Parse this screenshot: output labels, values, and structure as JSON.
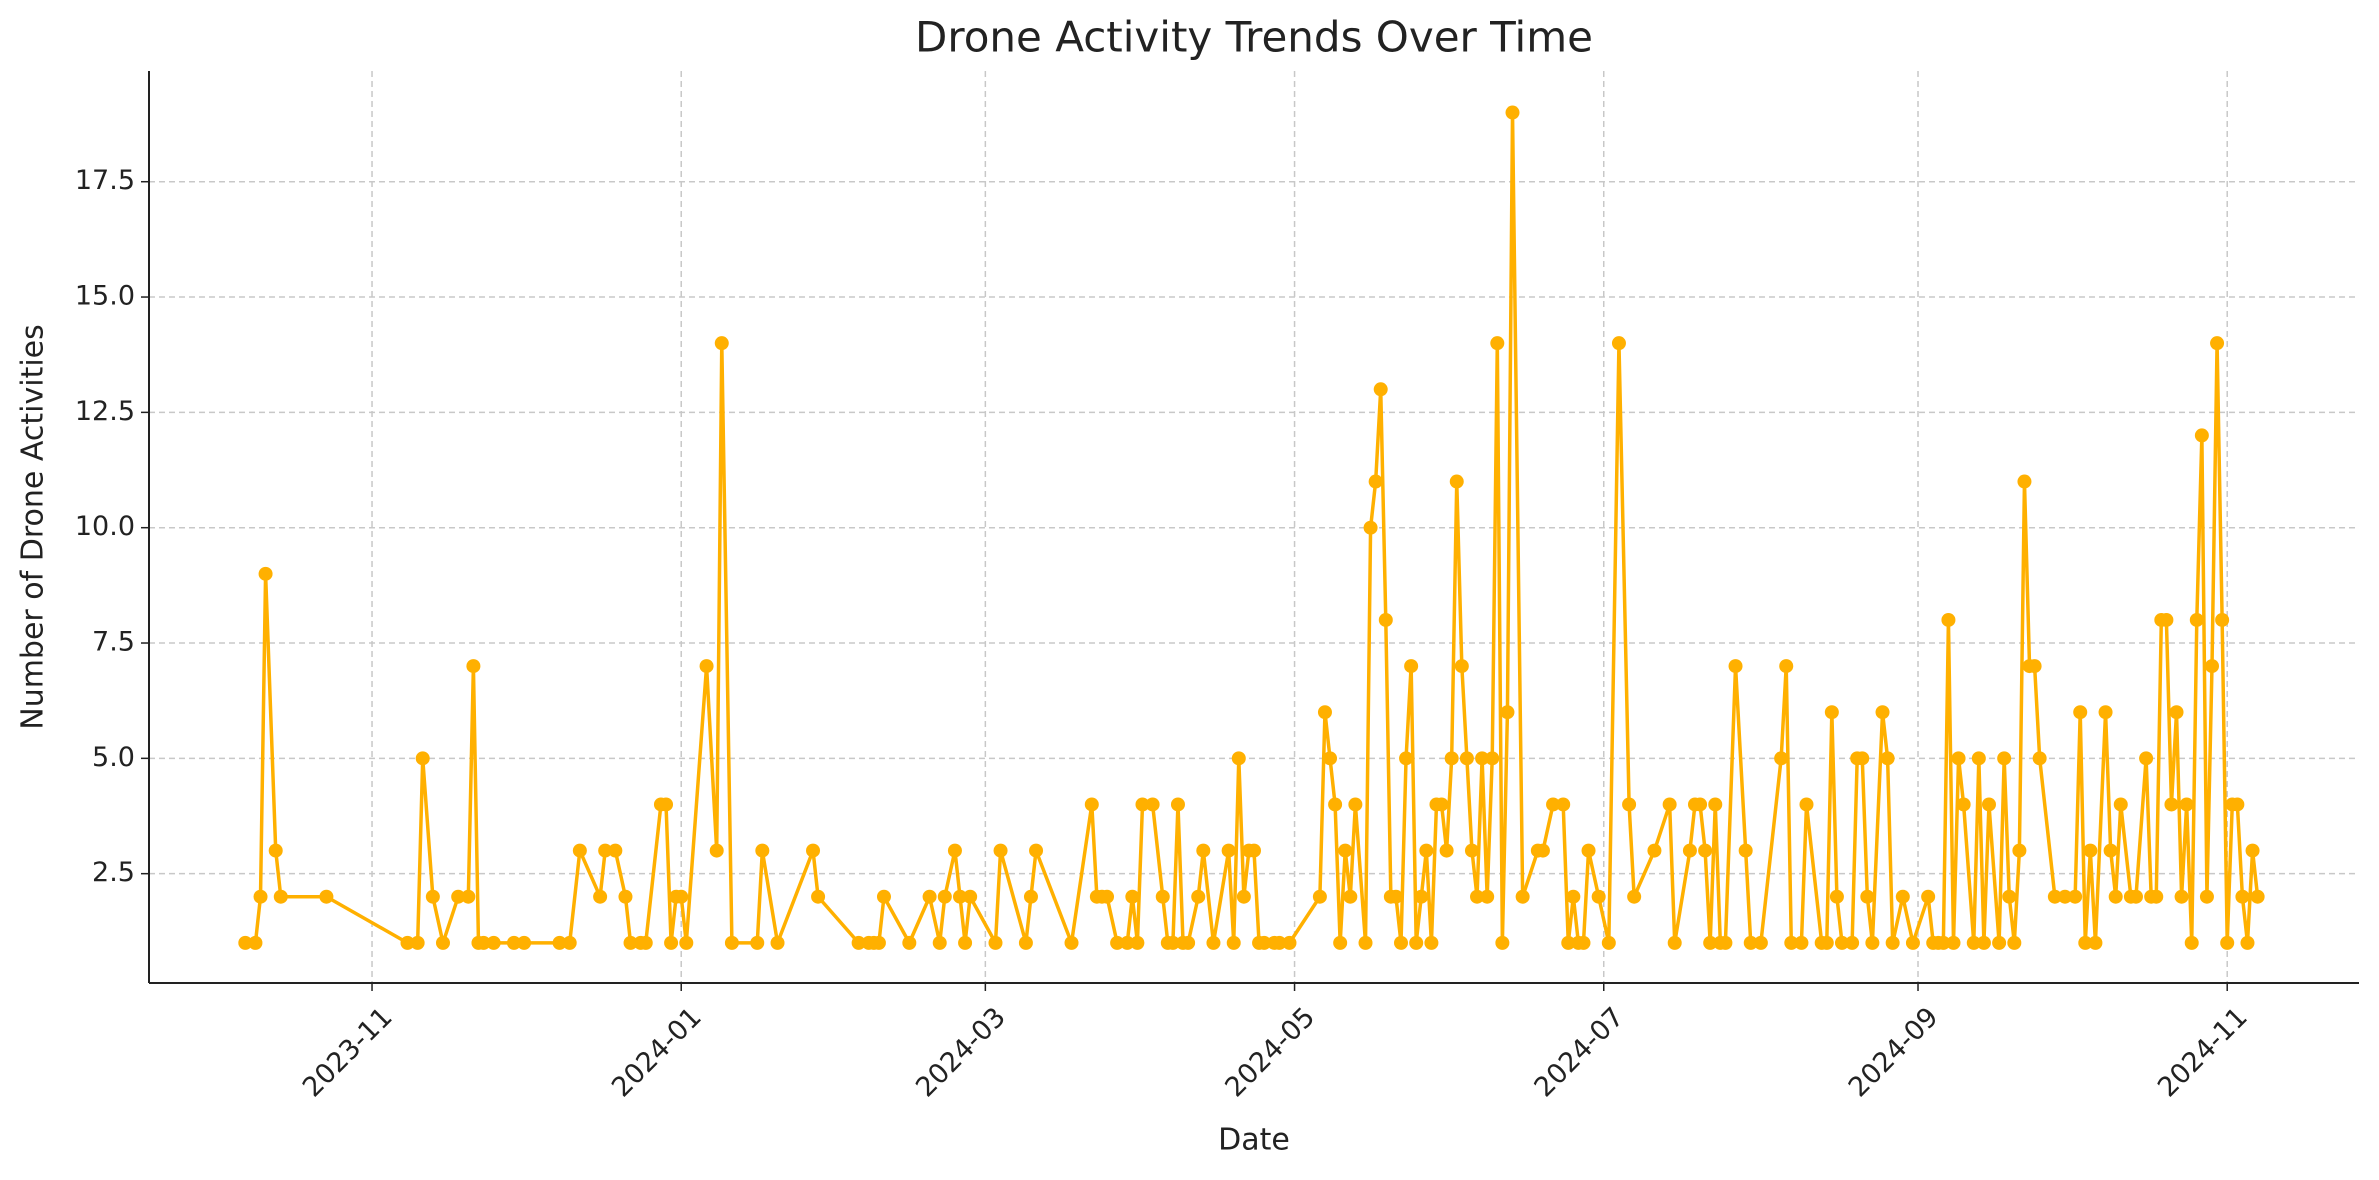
{
  "chart_data": {
    "type": "line",
    "title": "Drone Activity Trends Over Time",
    "x_label": "Date",
    "y_label": "Number of Drone Activities",
    "color": "#FFB000",
    "grid": true,
    "xlim": [
      "2023-09-18",
      "2024-11-27"
    ],
    "xticks": [
      "2023-11",
      "2024-01",
      "2024-03",
      "2024-05",
      "2024-07",
      "2024-09",
      "2024-11"
    ],
    "ylim": [
      0.13,
      19.9
    ],
    "yticks": [
      2.5,
      {
        "value": 5,
        "label": "5.0"
      },
      7.5,
      {
        "value": 10,
        "label": "10.0"
      },
      12.5,
      {
        "value": 15,
        "label": "15.0"
      },
      17.5
    ],
    "x": [
      "2023-10-07",
      "2023-10-09",
      "2023-10-10",
      "2023-10-11",
      "2023-10-13",
      "2023-10-14",
      "2023-10-23",
      "2023-11-08",
      "2023-11-10",
      "2023-11-11",
      "2023-11-13",
      "2023-11-15",
      "2023-11-18",
      "2023-11-20",
      "2023-11-21",
      "2023-11-22",
      "2023-11-23",
      "2023-11-25",
      "2023-11-29",
      "2023-12-01",
      "2023-12-08",
      "2023-12-10",
      "2023-12-12",
      "2023-12-16",
      "2023-12-17",
      "2023-12-19",
      "2023-12-21",
      "2023-12-22",
      "2023-12-24",
      "2023-12-25",
      "2023-12-28",
      "2023-12-29",
      "2023-12-30",
      "2023-12-31",
      "2024-01-01",
      "2024-01-02",
      "2024-01-06",
      "2024-01-08",
      "2024-01-09",
      "2024-01-11",
      "2024-01-16",
      "2024-01-17",
      "2024-01-20",
      "2024-01-27",
      "2024-01-28",
      "2024-02-05",
      "2024-02-07",
      "2024-02-08",
      "2024-02-09",
      "2024-02-10",
      "2024-02-15",
      "2024-02-19",
      "2024-02-21",
      "2024-02-22",
      "2024-02-24",
      "2024-02-25",
      "2024-02-26",
      "2024-02-27",
      "2024-03-03",
      "2024-03-04",
      "2024-03-09",
      "2024-03-10",
      "2024-03-11",
      "2024-03-18",
      "2024-03-22",
      "2024-03-23",
      "2024-03-24",
      "2024-03-25",
      "2024-03-27",
      "2024-03-29",
      "2024-03-30",
      "2024-03-31",
      "2024-04-01",
      "2024-04-03",
      "2024-04-05",
      "2024-04-06",
      "2024-04-07",
      "2024-04-08",
      "2024-04-09",
      "2024-04-10",
      "2024-04-12",
      "2024-04-13",
      "2024-04-15",
      "2024-04-18",
      "2024-04-19",
      "2024-04-20",
      "2024-04-21",
      "2024-04-22",
      "2024-04-23",
      "2024-04-24",
      "2024-04-25",
      "2024-04-27",
      "2024-04-28",
      "2024-04-30",
      "2024-05-06",
      "2024-05-07",
      "2024-05-08",
      "2024-05-09",
      "2024-05-10",
      "2024-05-11",
      "2024-05-12",
      "2024-05-13",
      "2024-05-15",
      "2024-05-16",
      "2024-05-17",
      "2024-05-18",
      "2024-05-19",
      "2024-05-20",
      "2024-05-21",
      "2024-05-22",
      "2024-05-23",
      "2024-05-24",
      "2024-05-25",
      "2024-05-26",
      "2024-05-27",
      "2024-05-28",
      "2024-05-29",
      "2024-05-30",
      "2024-05-31",
      "2024-06-01",
      "2024-06-02",
      "2024-06-03",
      "2024-06-04",
      "2024-06-05",
      "2024-06-06",
      "2024-06-07",
      "2024-06-08",
      "2024-06-09",
      "2024-06-10",
      "2024-06-11",
      "2024-06-12",
      "2024-06-13",
      "2024-06-15",
      "2024-06-18",
      "2024-06-19",
      "2024-06-21",
      "2024-06-23",
      "2024-06-24",
      "2024-06-25",
      "2024-06-26",
      "2024-06-27",
      "2024-06-28",
      "2024-06-30",
      "2024-07-02",
      "2024-07-04",
      "2024-07-06",
      "2024-07-07",
      "2024-07-11",
      "2024-07-14",
      "2024-07-15",
      "2024-07-18",
      "2024-07-19",
      "2024-07-20",
      "2024-07-21",
      "2024-07-22",
      "2024-07-23",
      "2024-07-24",
      "2024-07-25",
      "2024-07-27",
      "2024-07-29",
      "2024-07-30",
      "2024-08-01",
      "2024-08-05",
      "2024-08-06",
      "2024-08-07",
      "2024-08-09",
      "2024-08-10",
      "2024-08-13",
      "2024-08-14",
      "2024-08-15",
      "2024-08-16",
      "2024-08-17",
      "2024-08-19",
      "2024-08-20",
      "2024-08-21",
      "2024-08-22",
      "2024-08-23",
      "2024-08-25",
      "2024-08-26",
      "2024-08-27",
      "2024-08-29",
      "2024-08-31",
      "2024-09-03",
      "2024-09-04",
      "2024-09-05",
      "2024-09-06",
      "2024-09-07",
      "2024-09-08",
      "2024-09-09",
      "2024-09-10",
      "2024-09-12",
      "2024-09-13",
      "2024-09-14",
      "2024-09-15",
      "2024-09-17",
      "2024-09-18",
      "2024-09-19",
      "2024-09-20",
      "2024-09-21",
      "2024-09-22",
      "2024-09-23",
      "2024-09-24",
      "2024-09-25",
      "2024-09-28",
      "2024-09-30",
      "2024-10-02",
      "2024-10-03",
      "2024-10-04",
      "2024-10-05",
      "2024-10-06",
      "2024-10-08",
      "2024-10-09",
      "2024-10-10",
      "2024-10-11",
      "2024-10-13",
      "2024-10-14",
      "2024-10-16",
      "2024-10-17",
      "2024-10-18",
      "2024-10-19",
      "2024-10-20",
      "2024-10-21",
      "2024-10-22",
      "2024-10-23",
      "2024-10-24",
      "2024-10-25",
      "2024-10-26",
      "2024-10-27",
      "2024-10-28",
      "2024-10-29",
      "2024-10-30",
      "2024-10-31",
      "2024-11-01",
      "2024-11-02",
      "2024-11-03",
      "2024-11-04",
      "2024-11-05",
      "2024-11-06",
      "2024-11-07"
    ],
    "values": [
      1,
      1,
      2,
      9,
      3,
      2,
      2,
      1,
      1,
      5,
      2,
      1,
      2,
      2,
      7,
      1,
      1,
      1,
      1,
      1,
      1,
      1,
      3,
      2,
      3,
      3,
      2,
      1,
      1,
      1,
      4,
      4,
      1,
      2,
      2,
      1,
      7,
      3,
      14,
      1,
      1,
      3,
      1,
      3,
      2,
      1,
      1,
      1,
      1,
      2,
      1,
      2,
      1,
      2,
      3,
      2,
      1,
      2,
      1,
      3,
      1,
      2,
      3,
      1,
      4,
      2,
      2,
      2,
      1,
      1,
      2,
      1,
      4,
      4,
      2,
      1,
      1,
      4,
      1,
      1,
      2,
      3,
      1,
      3,
      1,
      5,
      2,
      3,
      3,
      1,
      1,
      1,
      1,
      1,
      2,
      6,
      5,
      4,
      1,
      3,
      2,
      4,
      1,
      10,
      11,
      13,
      8,
      2,
      2,
      1,
      5,
      7,
      1,
      2,
      3,
      1,
      4,
      4,
      3,
      5,
      11,
      7,
      5,
      3,
      2,
      5,
      2,
      5,
      14,
      1,
      6,
      19,
      2,
      3,
      3,
      4,
      4,
      1,
      2,
      1,
      1,
      3,
      2,
      1,
      14,
      4,
      2,
      3,
      4,
      1,
      3,
      4,
      4,
      3,
      1,
      4,
      1,
      1,
      7,
      3,
      1,
      1,
      5,
      7,
      1,
      1,
      4,
      1,
      1,
      6,
      2,
      1,
      1,
      5,
      5,
      2,
      1,
      6,
      5,
      1,
      2,
      1,
      2,
      1,
      1,
      1,
      8,
      1,
      5,
      4,
      1,
      5,
      1,
      4,
      1,
      5,
      2,
      1,
      3,
      11,
      7,
      7,
      5,
      2,
      2,
      2,
      6,
      1,
      3,
      1,
      6,
      3,
      2,
      4,
      2,
      2,
      5,
      2,
      2,
      8,
      8,
      4,
      6,
      2,
      4,
      1,
      8,
      12,
      2,
      7,
      14,
      8,
      1,
      4,
      4,
      2,
      1,
      3,
      2
    ]
  }
}
